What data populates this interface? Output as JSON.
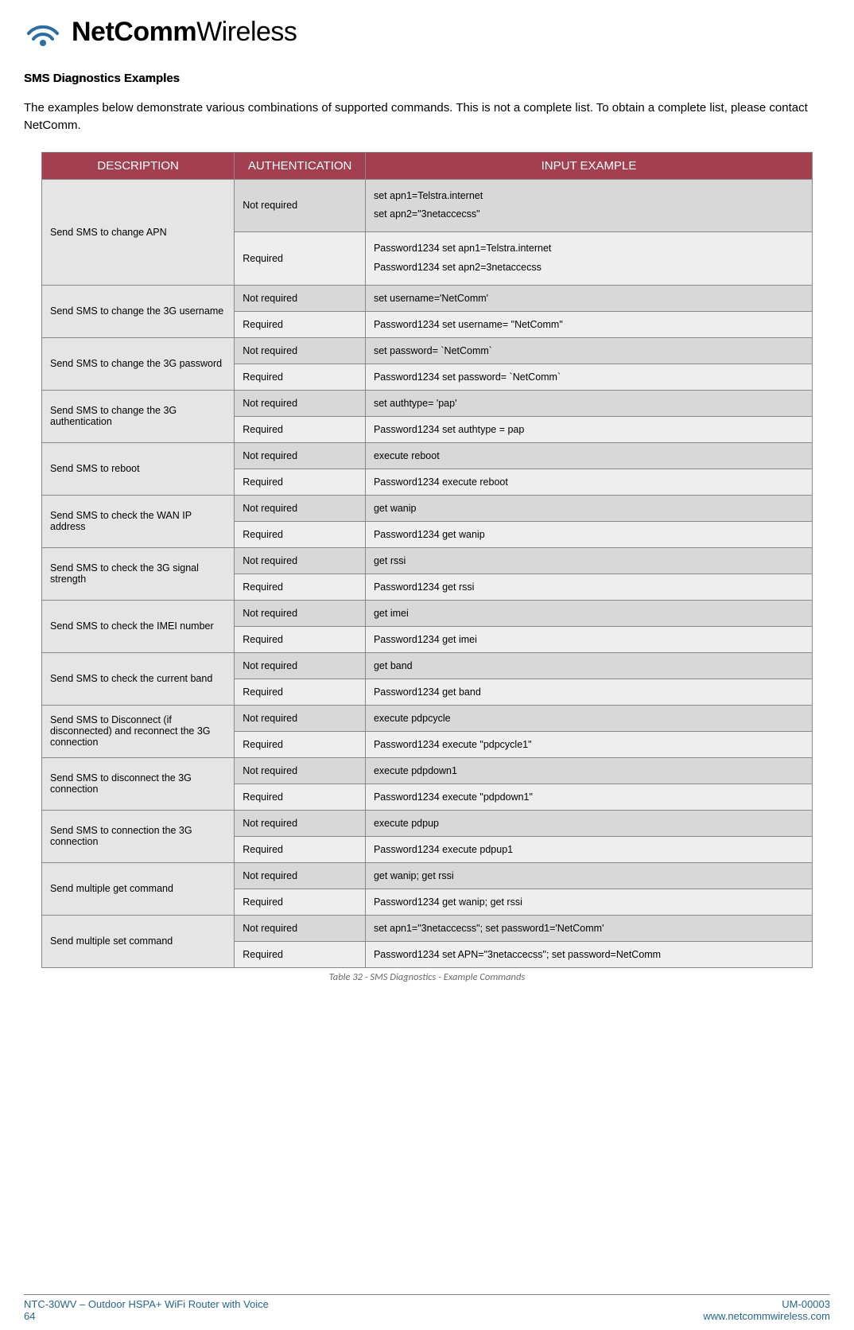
{
  "logo": {
    "brand_bold": "NetComm",
    "brand_light": "Wireless"
  },
  "section_title": "SMS Diagnostics Examples",
  "intro": "The examples below demonstrate various combinations of supported commands. This is not a complete list. To obtain a complete list, please contact NetComm.",
  "table": {
    "headers": {
      "description": "DESCRIPTION",
      "authentication": "AUTHENTICATION",
      "input_example": "INPUT EXAMPLE"
    },
    "header_bg": "#a3404f",
    "header_color": "#ffffff",
    "desc_bg": "#e6e5e6",
    "row_nr_bg": "#d9d8d9",
    "row_r_bg": "#efeeef",
    "border_color": "#888888",
    "rows": [
      {
        "description": "Send SMS to change APN",
        "not_required": [
          "set apn1=Telstra.internet",
          "set apn2=\"3netaccecss\""
        ],
        "required": [
          "Password1234 set apn1=Telstra.internet",
          "Password1234 set apn2=3netaccecss"
        ],
        "multiline": true
      },
      {
        "description": "Send SMS to change the 3G username",
        "not_required": [
          "set username='NetComm'"
        ],
        "required": [
          "Password1234 set username= \"NetComm\""
        ]
      },
      {
        "description": "Send SMS to change the 3G password",
        "not_required": [
          "set password= `NetComm`"
        ],
        "required": [
          "Password1234 set password= `NetComm`"
        ]
      },
      {
        "description": "Send SMS to change the 3G authentication",
        "not_required": [
          "set authtype= 'pap'"
        ],
        "required": [
          "Password1234  set authtype = pap"
        ]
      },
      {
        "description": "Send SMS to reboot",
        "not_required": [
          "execute reboot"
        ],
        "required": [
          "Password1234 execute reboot"
        ]
      },
      {
        "description": "Send SMS to check the WAN IP address",
        "not_required": [
          "get wanip"
        ],
        "required": [
          "Password1234 get wanip"
        ]
      },
      {
        "description": "Send SMS to check the 3G signal strength",
        "not_required": [
          "get rssi"
        ],
        "required": [
          "Password1234 get rssi"
        ]
      },
      {
        "description": "Send SMS to check the IMEI number",
        "not_required": [
          "get imei"
        ],
        "required": [
          "Password1234 get imei"
        ]
      },
      {
        "description": "Send SMS to check the current band",
        "not_required": [
          "get band"
        ],
        "required": [
          "Password1234 get band"
        ]
      },
      {
        "description": "Send SMS to Disconnect (if disconnected) and reconnect the 3G connection",
        "not_required": [
          "execute pdpcycle"
        ],
        "required": [
          "Password1234 execute \"pdpcycle1\""
        ]
      },
      {
        "description": "Send SMS to disconnect the 3G connection",
        "not_required": [
          "execute pdpdown1"
        ],
        "required": [
          "Password1234 execute \"pdpdown1\""
        ]
      },
      {
        "description": "Send SMS to connection the 3G connection",
        "not_required": [
          "execute pdpup"
        ],
        "required": [
          "Password1234 execute pdpup1"
        ]
      },
      {
        "description": "Send multiple get command",
        "not_required": [
          "get wanip; get rssi"
        ],
        "required": [
          "Password1234 get wanip; get rssi"
        ]
      },
      {
        "description": "Send multiple set command",
        "not_required": [
          "set apn1=\"3netaccecss\"; set password1='NetComm'"
        ],
        "required": [
          "Password1234 set APN=\"3netaccecss\"; set password=NetComm"
        ]
      }
    ]
  },
  "labels": {
    "not_required": "Not required",
    "required": "Required"
  },
  "caption": "Table 32 - SMS Diagnostics - Example Commands",
  "footer": {
    "left_line1": "NTC-30WV – Outdoor HSPA+ WiFi Router with Voice",
    "left_line2": "64",
    "right_line1": "UM-00003",
    "right_line2": "www.netcommwireless.com",
    "color": "#27658f"
  }
}
